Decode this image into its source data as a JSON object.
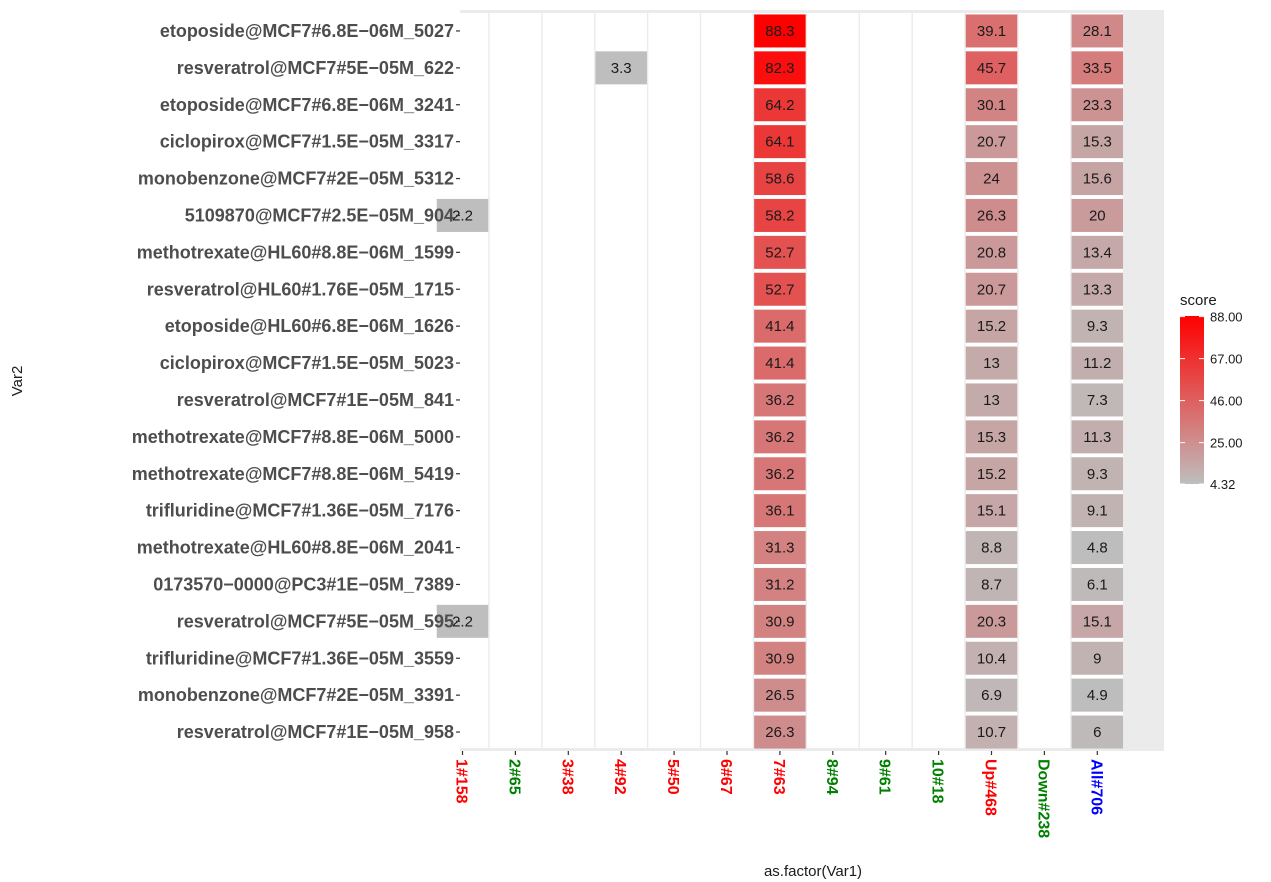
{
  "chart_data": {
    "type": "heatmap",
    "xlabel": "as.factor(Var1)",
    "ylabel": "Var2",
    "x_categories": [
      {
        "label": "1#158",
        "color": "#ff0000"
      },
      {
        "label": "2#65",
        "color": "#008000"
      },
      {
        "label": "3#38",
        "color": "#ff0000"
      },
      {
        "label": "4#92",
        "color": "#ff0000"
      },
      {
        "label": "5#50",
        "color": "#ff0000"
      },
      {
        "label": "6#67",
        "color": "#ff0000"
      },
      {
        "label": "7#63",
        "color": "#ff0000"
      },
      {
        "label": "8#94",
        "color": "#008000"
      },
      {
        "label": "9#61",
        "color": "#008000"
      },
      {
        "label": "10#18",
        "color": "#008000"
      },
      {
        "label": "Up#468",
        "color": "#ff0000"
      },
      {
        "label": "Down#238",
        "color": "#008000"
      },
      {
        "label": "All#706",
        "color": "#0000ff"
      }
    ],
    "y_categories": [
      "etoposide@MCF7#6.8E−06M_5027",
      "resveratrol@MCF7#5E−05M_622",
      "etoposide@MCF7#6.8E−06M_3241",
      "ciclopirox@MCF7#1.5E−05M_3317",
      "monobenzone@MCF7#2E−05M_5312",
      "5109870@MCF7#2.5E−05M_904",
      "methotrexate@HL60#8.8E−06M_1599",
      "resveratrol@HL60#1.76E−05M_1715",
      "etoposide@HL60#6.8E−06M_1626",
      "ciclopirox@MCF7#1.5E−05M_5023",
      "resveratrol@MCF7#1E−05M_841",
      "methotrexate@MCF7#8.8E−06M_5000",
      "methotrexate@MCF7#8.8E−06M_5419",
      "trifluridine@MCF7#1.36E−05M_7176",
      "methotrexate@HL60#8.8E−06M_2041",
      "0173570−0000@PC3#1E−05M_7389",
      "resveratrol@MCF7#5E−05M_595",
      "trifluridine@MCF7#1.36E−05M_3559",
      "monobenzone@MCF7#2E−05M_3391",
      "resveratrol@MCF7#1E−05M_958"
    ],
    "cells": [
      {
        "row": 0,
        "col": 6,
        "value": 88.3,
        "label": "88.3"
      },
      {
        "row": 0,
        "col": 10,
        "value": 39.1,
        "label": "39.1"
      },
      {
        "row": 0,
        "col": 12,
        "value": 28.1,
        "label": "28.1"
      },
      {
        "row": 1,
        "col": 3,
        "value": 3.3,
        "label": "3.3"
      },
      {
        "row": 1,
        "col": 6,
        "value": 82.3,
        "label": "82.3"
      },
      {
        "row": 1,
        "col": 10,
        "value": 45.7,
        "label": "45.7"
      },
      {
        "row": 1,
        "col": 12,
        "value": 33.5,
        "label": "33.5"
      },
      {
        "row": 2,
        "col": 6,
        "value": 64.2,
        "label": "64.2"
      },
      {
        "row": 2,
        "col": 10,
        "value": 30.1,
        "label": "30.1"
      },
      {
        "row": 2,
        "col": 12,
        "value": 23.3,
        "label": "23.3"
      },
      {
        "row": 3,
        "col": 6,
        "value": 64.1,
        "label": "64.1"
      },
      {
        "row": 3,
        "col": 10,
        "value": 20.7,
        "label": "20.7"
      },
      {
        "row": 3,
        "col": 12,
        "value": 15.3,
        "label": "15.3"
      },
      {
        "row": 4,
        "col": 6,
        "value": 58.6,
        "label": "58.6"
      },
      {
        "row": 4,
        "col": 10,
        "value": 24,
        "label": "24"
      },
      {
        "row": 4,
        "col": 12,
        "value": 15.6,
        "label": "15.6"
      },
      {
        "row": 5,
        "col": 0,
        "value": 2.2,
        "label": "2.2"
      },
      {
        "row": 5,
        "col": 6,
        "value": 58.2,
        "label": "58.2"
      },
      {
        "row": 5,
        "col": 10,
        "value": 26.3,
        "label": "26.3"
      },
      {
        "row": 5,
        "col": 12,
        "value": 20,
        "label": "20"
      },
      {
        "row": 6,
        "col": 6,
        "value": 52.7,
        "label": "52.7"
      },
      {
        "row": 6,
        "col": 10,
        "value": 20.8,
        "label": "20.8"
      },
      {
        "row": 6,
        "col": 12,
        "value": 13.4,
        "label": "13.4"
      },
      {
        "row": 7,
        "col": 6,
        "value": 52.7,
        "label": "52.7"
      },
      {
        "row": 7,
        "col": 10,
        "value": 20.7,
        "label": "20.7"
      },
      {
        "row": 7,
        "col": 12,
        "value": 13.3,
        "label": "13.3"
      },
      {
        "row": 8,
        "col": 6,
        "value": 41.4,
        "label": "41.4"
      },
      {
        "row": 8,
        "col": 10,
        "value": 15.2,
        "label": "15.2"
      },
      {
        "row": 8,
        "col": 12,
        "value": 9.3,
        "label": "9.3"
      },
      {
        "row": 9,
        "col": 6,
        "value": 41.4,
        "label": "41.4"
      },
      {
        "row": 9,
        "col": 10,
        "value": 13,
        "label": "13"
      },
      {
        "row": 9,
        "col": 12,
        "value": 11.2,
        "label": "11.2"
      },
      {
        "row": 10,
        "col": 6,
        "value": 36.2,
        "label": "36.2"
      },
      {
        "row": 10,
        "col": 10,
        "value": 13,
        "label": "13"
      },
      {
        "row": 10,
        "col": 12,
        "value": 7.3,
        "label": "7.3"
      },
      {
        "row": 11,
        "col": 6,
        "value": 36.2,
        "label": "36.2"
      },
      {
        "row": 11,
        "col": 10,
        "value": 15.3,
        "label": "15.3"
      },
      {
        "row": 11,
        "col": 12,
        "value": 11.3,
        "label": "11.3"
      },
      {
        "row": 12,
        "col": 6,
        "value": 36.2,
        "label": "36.2"
      },
      {
        "row": 12,
        "col": 10,
        "value": 15.2,
        "label": "15.2"
      },
      {
        "row": 12,
        "col": 12,
        "value": 9.3,
        "label": "9.3"
      },
      {
        "row": 13,
        "col": 6,
        "value": 36.1,
        "label": "36.1"
      },
      {
        "row": 13,
        "col": 10,
        "value": 15.1,
        "label": "15.1"
      },
      {
        "row": 13,
        "col": 12,
        "value": 9.1,
        "label": "9.1"
      },
      {
        "row": 14,
        "col": 6,
        "value": 31.3,
        "label": "31.3"
      },
      {
        "row": 14,
        "col": 10,
        "value": 8.8,
        "label": "8.8"
      },
      {
        "row": 14,
        "col": 12,
        "value": 4.8,
        "label": "4.8"
      },
      {
        "row": 15,
        "col": 6,
        "value": 31.2,
        "label": "31.2"
      },
      {
        "row": 15,
        "col": 10,
        "value": 8.7,
        "label": "8.7"
      },
      {
        "row": 15,
        "col": 12,
        "value": 6.1,
        "label": "6.1"
      },
      {
        "row": 16,
        "col": 0,
        "value": 2.2,
        "label": "2.2"
      },
      {
        "row": 16,
        "col": 6,
        "value": 30.9,
        "label": "30.9"
      },
      {
        "row": 16,
        "col": 10,
        "value": 20.3,
        "label": "20.3"
      },
      {
        "row": 16,
        "col": 12,
        "value": 15.1,
        "label": "15.1"
      },
      {
        "row": 17,
        "col": 6,
        "value": 30.9,
        "label": "30.9"
      },
      {
        "row": 17,
        "col": 10,
        "value": 10.4,
        "label": "10.4"
      },
      {
        "row": 17,
        "col": 12,
        "value": 9,
        "label": "9"
      },
      {
        "row": 18,
        "col": 6,
        "value": 26.5,
        "label": "26.5"
      },
      {
        "row": 18,
        "col": 10,
        "value": 6.9,
        "label": "6.9"
      },
      {
        "row": 18,
        "col": 12,
        "value": 4.9,
        "label": "4.9"
      },
      {
        "row": 19,
        "col": 6,
        "value": 26.3,
        "label": "26.3"
      },
      {
        "row": 19,
        "col": 10,
        "value": 10.7,
        "label": "10.7"
      },
      {
        "row": 19,
        "col": 12,
        "value": 6,
        "label": "6"
      }
    ],
    "legend": {
      "title": "score",
      "ticks": [
        88.0,
        67.0,
        46.0,
        25.0,
        4.32
      ],
      "tick_labels": [
        "88.00",
        "67.00",
        "46.00",
        "25.00",
        "4.32"
      ],
      "range": [
        4.32,
        88.3
      ],
      "low_color": "#bebebe",
      "high_color": "#ff0000"
    },
    "below_range_color": "#bebebe",
    "panel_background": "#ebebeb",
    "grid": false
  }
}
